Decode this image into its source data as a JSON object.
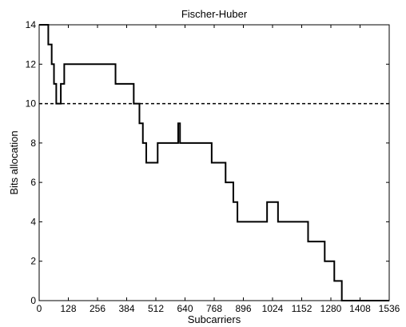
{
  "chart_data": {
    "type": "line",
    "title": "Fischer-Huber",
    "xlabel": "Subcarriers",
    "ylabel": "Bits allocation",
    "xlim": [
      0,
      1536
    ],
    "ylim": [
      0,
      14
    ],
    "xticks": [
      0,
      128,
      256,
      384,
      512,
      640,
      768,
      896,
      1024,
      1152,
      1280,
      1408,
      1536
    ],
    "yticks": [
      0,
      2,
      4,
      6,
      8,
      10,
      12,
      14
    ],
    "grid": false,
    "series": [
      {
        "style": "step",
        "color": "#000000",
        "points": [
          [
            0,
            14
          ],
          [
            40,
            14
          ],
          [
            40,
            13
          ],
          [
            55,
            13
          ],
          [
            55,
            12
          ],
          [
            65,
            12
          ],
          [
            65,
            11
          ],
          [
            75,
            11
          ],
          [
            75,
            10
          ],
          [
            95,
            10
          ],
          [
            95,
            11
          ],
          [
            110,
            11
          ],
          [
            110,
            12
          ],
          [
            335,
            12
          ],
          [
            335,
            11
          ],
          [
            415,
            11
          ],
          [
            415,
            10
          ],
          [
            440,
            10
          ],
          [
            440,
            9
          ],
          [
            455,
            9
          ],
          [
            455,
            8
          ],
          [
            470,
            8
          ],
          [
            470,
            7
          ],
          [
            520,
            7
          ],
          [
            520,
            8
          ],
          [
            610,
            8
          ],
          [
            610,
            9
          ],
          [
            618,
            9
          ],
          [
            618,
            8
          ],
          [
            757,
            8
          ],
          [
            757,
            7
          ],
          [
            818,
            7
          ],
          [
            818,
            6
          ],
          [
            852,
            6
          ],
          [
            852,
            5
          ],
          [
            870,
            5
          ],
          [
            870,
            4
          ],
          [
            1000,
            4
          ],
          [
            1000,
            5
          ],
          [
            1048,
            5
          ],
          [
            1048,
            4
          ],
          [
            1180,
            4
          ],
          [
            1180,
            3
          ],
          [
            1253,
            3
          ],
          [
            1253,
            2
          ],
          [
            1295,
            2
          ],
          [
            1295,
            1
          ],
          [
            1328,
            1
          ],
          [
            1328,
            0
          ],
          [
            1536,
            0
          ]
        ]
      },
      {
        "style": "dashed",
        "color": "#000000",
        "points": [
          [
            0,
            10
          ],
          [
            1536,
            10
          ]
        ]
      }
    ]
  }
}
